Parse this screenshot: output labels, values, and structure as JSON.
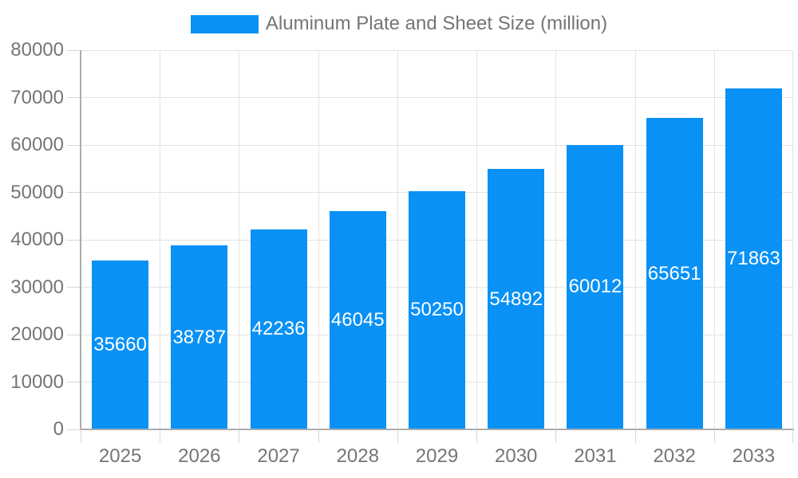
{
  "legend": {
    "label": "Aluminum Plate and Sheet Size (million)"
  },
  "chart_data": {
    "type": "bar",
    "title": "Aluminum Plate and Sheet Size (million)",
    "categories": [
      "2025",
      "2026",
      "2027",
      "2028",
      "2029",
      "2030",
      "2031",
      "2032",
      "2033"
    ],
    "values": [
      35660,
      38787,
      42236,
      46045,
      50250,
      54892,
      60012,
      65651,
      71863
    ],
    "series_name": "Aluminum Plate and Sheet Size (million)",
    "xlabel": "",
    "ylabel": "",
    "ylim": [
      0,
      80000
    ],
    "ytick_interval": 10000,
    "ytick_labels": [
      "0",
      "10000",
      "20000",
      "30000",
      "40000",
      "50000",
      "60000",
      "70000",
      "80000"
    ],
    "grid": true,
    "legend_position": "top-center",
    "data_labels": {
      "position": "inside-center",
      "color": "#FFFFFF"
    },
    "bar_color": "#0991F5",
    "colors": {
      "axis_line": "#ABABAB",
      "grid_line": "#E3E3E3",
      "tick_line": "#D6D6D6",
      "axis_text": "#757575",
      "background": "#FFFFFF"
    }
  }
}
